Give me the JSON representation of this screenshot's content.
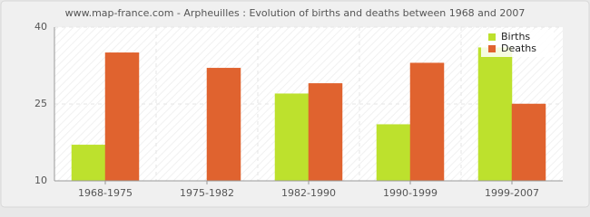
{
  "chart_data": {
    "type": "bar",
    "title": "www.map-france.com - Arpheuilles : Evolution of births and deaths between 1968 and 2007",
    "categories": [
      "1968-1975",
      "1975-1982",
      "1982-1990",
      "1990-1999",
      "1999-2007"
    ],
    "series": [
      {
        "name": "Births",
        "color": "#bde12d",
        "values": [
          17,
          10,
          27,
          21,
          36
        ]
      },
      {
        "name": "Deaths",
        "color": "#e0632f",
        "values": [
          35,
          32,
          29,
          33,
          25
        ]
      }
    ],
    "ylim": [
      10,
      40
    ],
    "yticks": [
      10,
      25,
      40
    ],
    "grid": true,
    "legend": "top-right"
  }
}
